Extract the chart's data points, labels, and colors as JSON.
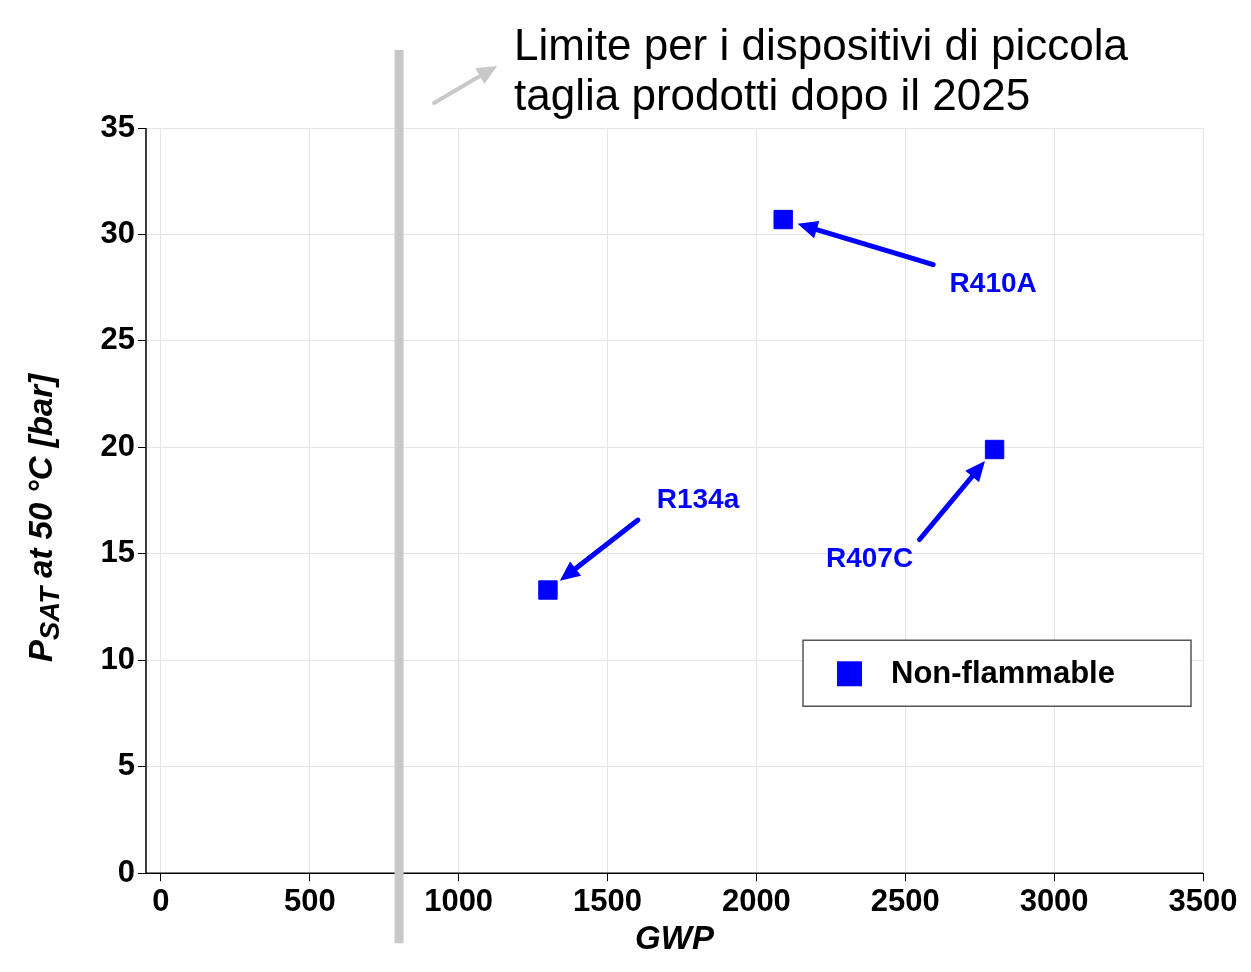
{
  "chart_data": {
    "type": "scatter",
    "xlabel": "GWP",
    "ylabel": "P$_{SAT}$ at 50 °C [bar]",
    "series": [
      {
        "name": "Non-flammable",
        "color": "#0000ff",
        "x": [
          1300,
          2090,
          2800
        ],
        "values": [
          13.3,
          30.7,
          19.9
        ]
      }
    ],
    "xlim": [
      -50,
      3500
    ],
    "xticks": [
      0,
      500,
      1000,
      1500,
      2000,
      2500,
      3000,
      3500
    ],
    "ylim": [
      0,
      35
    ],
    "yticks": [
      0,
      5,
      10,
      15,
      20,
      25,
      30,
      35
    ],
    "grid": true,
    "legend": "bottom right",
    "marker": "square",
    "ref_lines": [
      {
        "axis": "x",
        "value": 800,
        "label": "Limite per i dispositivi di piccola taglia prodotti dopo il 2025",
        "color": "#c8c8c8"
      }
    ],
    "annotations": [
      "R134a",
      "R410A",
      "R407C"
    ]
  }
}
